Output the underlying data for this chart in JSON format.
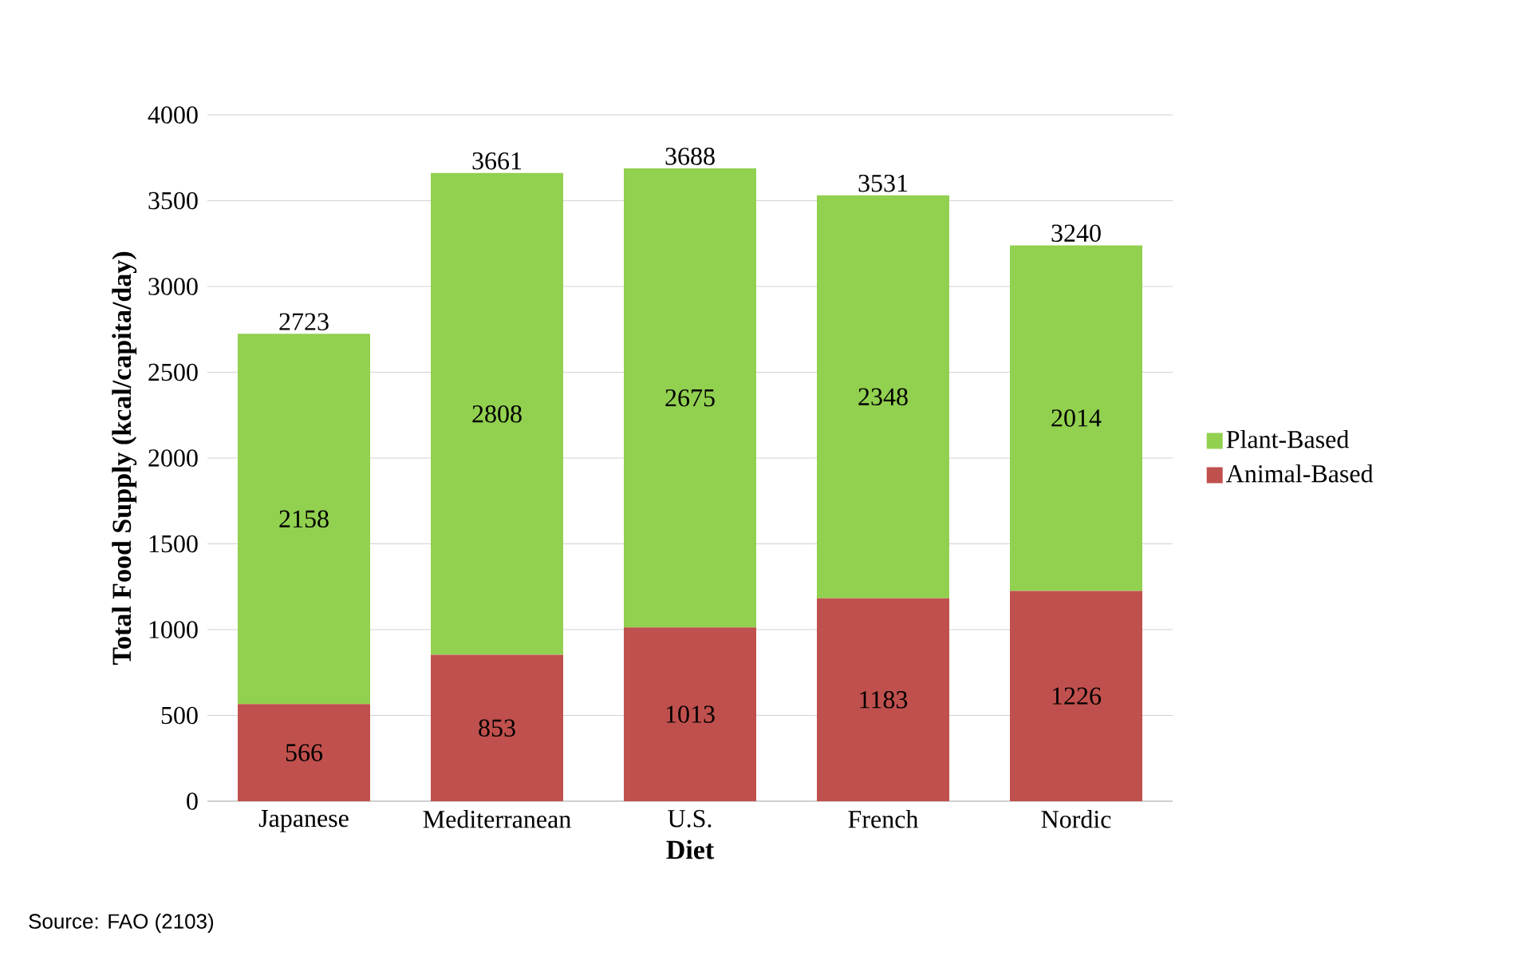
{
  "chart_data": {
    "type": "bar",
    "stacked": true,
    "xlabel": "Diet",
    "ylabel": "Total Food Supply (kcal/capita/day)",
    "categories": [
      "Japanese",
      "Mediterranean",
      "U.S.",
      "French",
      "Nordic"
    ],
    "series": [
      {
        "name": "Animal-Based",
        "color": "#c0504d",
        "values": [
          566,
          853,
          1013,
          1183,
          1226
        ]
      },
      {
        "name": "Plant-Based",
        "color": "#92d050",
        "values": [
          2158,
          2808,
          2675,
          2348,
          2014
        ]
      }
    ],
    "totals": [
      "2723",
      "3661",
      "3688",
      "3531",
      "3240"
    ],
    "data_labels": true,
    "ylim": [
      0,
      4000
    ],
    "yticks": [
      0,
      500,
      1000,
      1500,
      2000,
      2500,
      3000,
      3500,
      4000
    ],
    "grid": "y",
    "legend": "right",
    "annotations": [
      "Source: FAO (2103)"
    ]
  }
}
